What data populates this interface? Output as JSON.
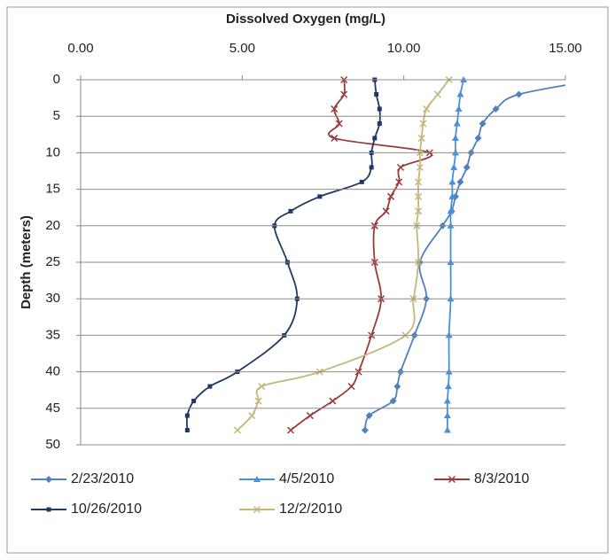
{
  "chart_data": {
    "type": "line",
    "title": "Dissolved Oxygen (mg/L)",
    "y_label": "Depth (meters)",
    "xlim": [
      0,
      15
    ],
    "xticks": [
      {
        "value": 0,
        "label": "0.00"
      },
      {
        "value": 5,
        "label": "5.00"
      },
      {
        "value": 10,
        "label": "10.00"
      },
      {
        "value": 15,
        "label": "15.00"
      }
    ],
    "ylim": [
      0,
      50
    ],
    "y_inverted": true,
    "yticks": [
      0,
      5,
      10,
      15,
      20,
      25,
      30,
      35,
      40,
      45,
      50
    ],
    "grid": true,
    "legend": "bottom",
    "y": [
      0,
      2,
      4,
      6,
      8,
      10,
      12,
      14,
      16,
      18,
      20,
      25,
      30,
      35,
      40,
      42,
      44,
      46,
      48
    ],
    "series": [
      {
        "name": "2/23/2010",
        "color": "#4f81bd",
        "marker": "diamond",
        "values": [
          16.0,
          13.56,
          12.85,
          12.44,
          12.3,
          12.08,
          11.95,
          11.75,
          11.6,
          11.48,
          11.2,
          10.5,
          10.7,
          10.33,
          9.9,
          9.8,
          9.67,
          8.93,
          8.8
        ]
      },
      {
        "name": "4/5/2010",
        "color": "#4a90d9",
        "marker": "triangle",
        "values": [
          11.85,
          11.75,
          11.7,
          11.65,
          11.6,
          11.6,
          11.55,
          11.5,
          11.5,
          11.45,
          11.45,
          11.45,
          11.45,
          11.4,
          11.4,
          11.38,
          11.35,
          11.35,
          11.35
        ]
      },
      {
        "name": "8/3/2010",
        "color": "#9b3a3a",
        "marker": "x",
        "values": [
          8.15,
          8.15,
          7.85,
          8.0,
          7.85,
          10.8,
          9.9,
          9.85,
          9.6,
          9.45,
          9.1,
          9.1,
          9.3,
          9.0,
          8.6,
          8.38,
          7.8,
          7.1,
          6.5
        ]
      },
      {
        "name": "10/26/2010",
        "color": "#1f3864",
        "marker": "square",
        "values": [
          9.1,
          9.15,
          9.25,
          9.25,
          9.1,
          9.0,
          9.0,
          8.7,
          7.4,
          6.5,
          6.0,
          6.4,
          6.7,
          6.3,
          4.85,
          4.0,
          3.5,
          3.3,
          3.3
        ]
      },
      {
        "name": "12/2/2010",
        "color": "#c4b77a",
        "marker": "x",
        "values": [
          11.4,
          11.05,
          10.7,
          10.6,
          10.55,
          10.5,
          10.5,
          10.45,
          10.45,
          10.45,
          10.4,
          10.45,
          10.3,
          10.05,
          7.4,
          5.6,
          5.5,
          5.3,
          4.85
        ]
      }
    ]
  }
}
